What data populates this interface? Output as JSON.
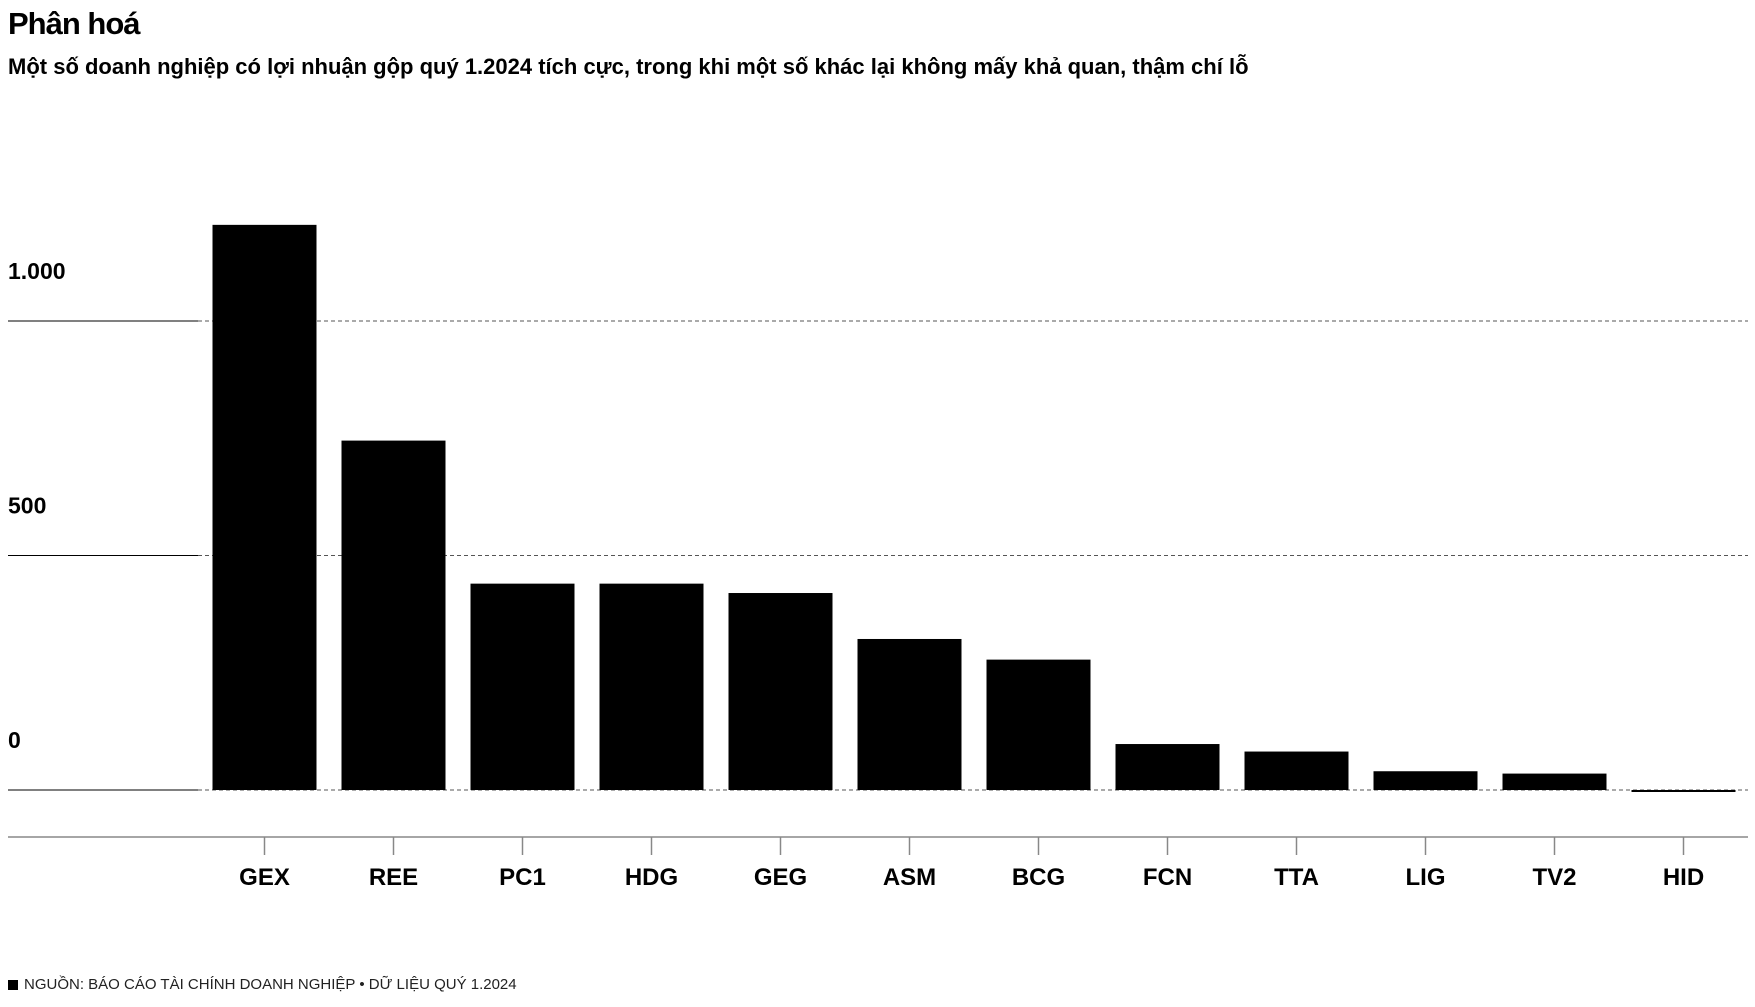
{
  "header": {
    "title": "Phân hoá",
    "subtitle": "Một số doanh nghiệp có lợi nhuận gộp quý 1.2024 tích cực, trong khi một số khác lại không mấy khả quan, thậm chí lỗ"
  },
  "footer": {
    "source": "NGUỒN: BÁO CÁO TÀI CHÍNH DOANH NGHIỆP • DỮ LIỆU QUÝ 1.2024"
  },
  "colors": {
    "bar": "#000000",
    "grid": "#555555",
    "axis": "#888888"
  },
  "chart_data": {
    "type": "bar",
    "title": "Phân hoá",
    "subtitle": "Một số doanh nghiệp có lợi nhuận gộp quý 1.2024 tích cực, trong khi một số khác lại không mấy khả quan, thậm chí lỗ",
    "xlabel": "",
    "ylabel": "",
    "categories": [
      "GEX",
      "REE",
      "PC1",
      "HDG",
      "GEG",
      "ASM",
      "BCG",
      "FCN",
      "TTA",
      "LIG",
      "TV2",
      "HID"
    ],
    "values": [
      1205,
      745,
      440,
      440,
      420,
      322,
      278,
      98,
      82,
      40,
      35,
      -3
    ],
    "ylim": [
      -100,
      1300
    ],
    "yticks": [
      0,
      500,
      1000
    ],
    "ytick_labels": [
      "0",
      "500",
      "1.000"
    ],
    "grid": true,
    "grid_style": "dashed",
    "legend": "none"
  }
}
